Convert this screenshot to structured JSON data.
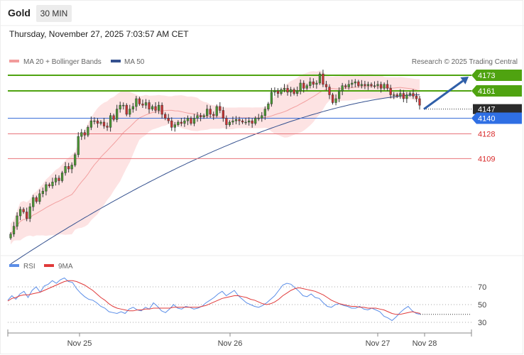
{
  "header": {
    "title": "Gold",
    "timeframe": "30 MIN",
    "datetime": "Thursday, November 27, 2025 7:03:57 AM CET"
  },
  "legend": {
    "ma20": "MA 20 + Bollinger Bands",
    "ma50": "MA 50",
    "rsi": "RSI",
    "rsi_ma": "9MA"
  },
  "credit": "Research © 2025 Trading Central",
  "colors": {
    "green": "#4fa310",
    "blue_level": "#3b6fd8",
    "red_level": "#e8747a",
    "pivot": "#3d7ee8",
    "bollinger": "#fde3e3",
    "ma20": "#f2a0a0",
    "ma50": "#35518f",
    "bull": "#4b9a32",
    "bear": "#cc3333",
    "rsi": "#5b8ee8",
    "rsi_ma": "#e03a3a"
  },
  "chart_data": [
    {
      "type": "candlestick",
      "x_labels": [
        "Nov 25",
        "Nov 26",
        "Nov 27",
        "Nov 28"
      ],
      "levels": [
        {
          "value": 4173,
          "label": "4173",
          "color": "green",
          "style": "resistance"
        },
        {
          "value": 4161,
          "label": "4161",
          "color": "green",
          "style": "resistance"
        },
        {
          "value": 4147,
          "label": "4147",
          "color": "dark",
          "style": "last"
        },
        {
          "value": 4140,
          "label": "4140",
          "color": "blue",
          "style": "pivot"
        },
        {
          "value": 4128,
          "label": "4128",
          "color": "red",
          "style": "support"
        },
        {
          "value": 4109,
          "label": "4109",
          "color": "red",
          "style": "support"
        }
      ],
      "ylim": [
        4090,
        4185
      ],
      "close": [
        4051,
        4057,
        4065,
        4070,
        4068,
        4063,
        4072,
        4079,
        4076,
        4082,
        4084,
        4089,
        4088,
        4091,
        4094,
        4092,
        4098,
        4103,
        4101,
        4104,
        4112,
        4126,
        4129,
        4127,
        4133,
        4138,
        4138,
        4136,
        4137,
        4134,
        4133,
        4142,
        4139,
        4147,
        4150,
        4150,
        4143,
        4147,
        4149,
        4155,
        4151,
        4150,
        4152,
        4147,
        4149,
        4146,
        4150,
        4143,
        4140,
        4138,
        4133,
        4135,
        4137,
        4136,
        4138,
        4140,
        4136,
        4140,
        4142,
        4141,
        4142,
        4147,
        4143,
        4142,
        4149,
        4146,
        4140,
        4135,
        4137,
        4138,
        4139,
        4138,
        4137,
        4137,
        4138,
        4136,
        4140,
        4140,
        4142,
        4147,
        4151,
        4160,
        4161,
        4159,
        4162,
        4163,
        4160,
        4162,
        4159,
        4161,
        4167,
        4163,
        4165,
        4168,
        4166,
        4167,
        4174,
        4166,
        4164,
        4158,
        4152,
        4155,
        4161,
        4165,
        4164,
        4166,
        4167,
        4168,
        4165,
        4166,
        4165,
        4166,
        4165,
        4165,
        4166,
        4163,
        4166,
        4163,
        4158,
        4158,
        4157,
        4159,
        4155,
        4158,
        4159,
        4157,
        4155,
        4150
      ],
      "ma50_start": 4028,
      "ma50_end": 4158,
      "trend_arrow": {
        "from": 4147,
        "to": 4173
      }
    },
    {
      "type": "line",
      "title": "RSI",
      "ylim": [
        20,
        80
      ],
      "ticks": [
        70,
        50,
        30
      ],
      "series": [
        {
          "name": "RSI",
          "values": [
            55,
            60,
            56,
            62,
            65,
            58,
            66,
            70,
            64,
            71,
            73,
            77,
            74,
            78,
            80,
            76,
            75,
            68,
            63,
            59,
            56,
            55,
            52,
            48,
            46,
            42,
            41,
            40,
            42,
            40,
            45,
            47,
            44,
            43,
            47,
            45,
            52,
            48,
            43,
            41,
            45,
            50,
            46,
            45,
            48,
            47,
            45,
            46,
            48,
            52,
            55,
            58,
            62,
            65,
            60,
            63,
            66,
            60,
            56,
            52,
            50,
            48,
            47,
            49,
            52,
            56,
            60,
            66,
            72,
            74,
            73,
            69,
            65,
            60,
            59,
            62,
            58,
            57,
            52,
            48,
            47,
            50,
            51,
            49,
            48,
            46,
            46,
            48,
            45,
            44,
            46,
            44,
            42,
            37,
            35,
            32,
            36,
            41,
            45,
            48,
            43,
            40,
            39
          ]
        },
        {
          "name": "9MA",
          "values": [
            54,
            57,
            58,
            60,
            61,
            61,
            62,
            63,
            64,
            66,
            68,
            70,
            72,
            74,
            76,
            77,
            77,
            76,
            74,
            72,
            69,
            66,
            62,
            58,
            55,
            51,
            48,
            46,
            45,
            44,
            43,
            43,
            44,
            44,
            45,
            45,
            46,
            46,
            46,
            46,
            46,
            47,
            47,
            47,
            47,
            47,
            47,
            47,
            48,
            49,
            51,
            53,
            55,
            57,
            58,
            59,
            60,
            60,
            59,
            58,
            56,
            55,
            53,
            51,
            50,
            51,
            53,
            56,
            60,
            63,
            66,
            68,
            69,
            68,
            67,
            66,
            65,
            63,
            61,
            58,
            55,
            53,
            51,
            50,
            49,
            48,
            48,
            47,
            47,
            46,
            46,
            46,
            45,
            44,
            42,
            40,
            39,
            39,
            40,
            41,
            42,
            41,
            40
          ]
        }
      ]
    }
  ]
}
